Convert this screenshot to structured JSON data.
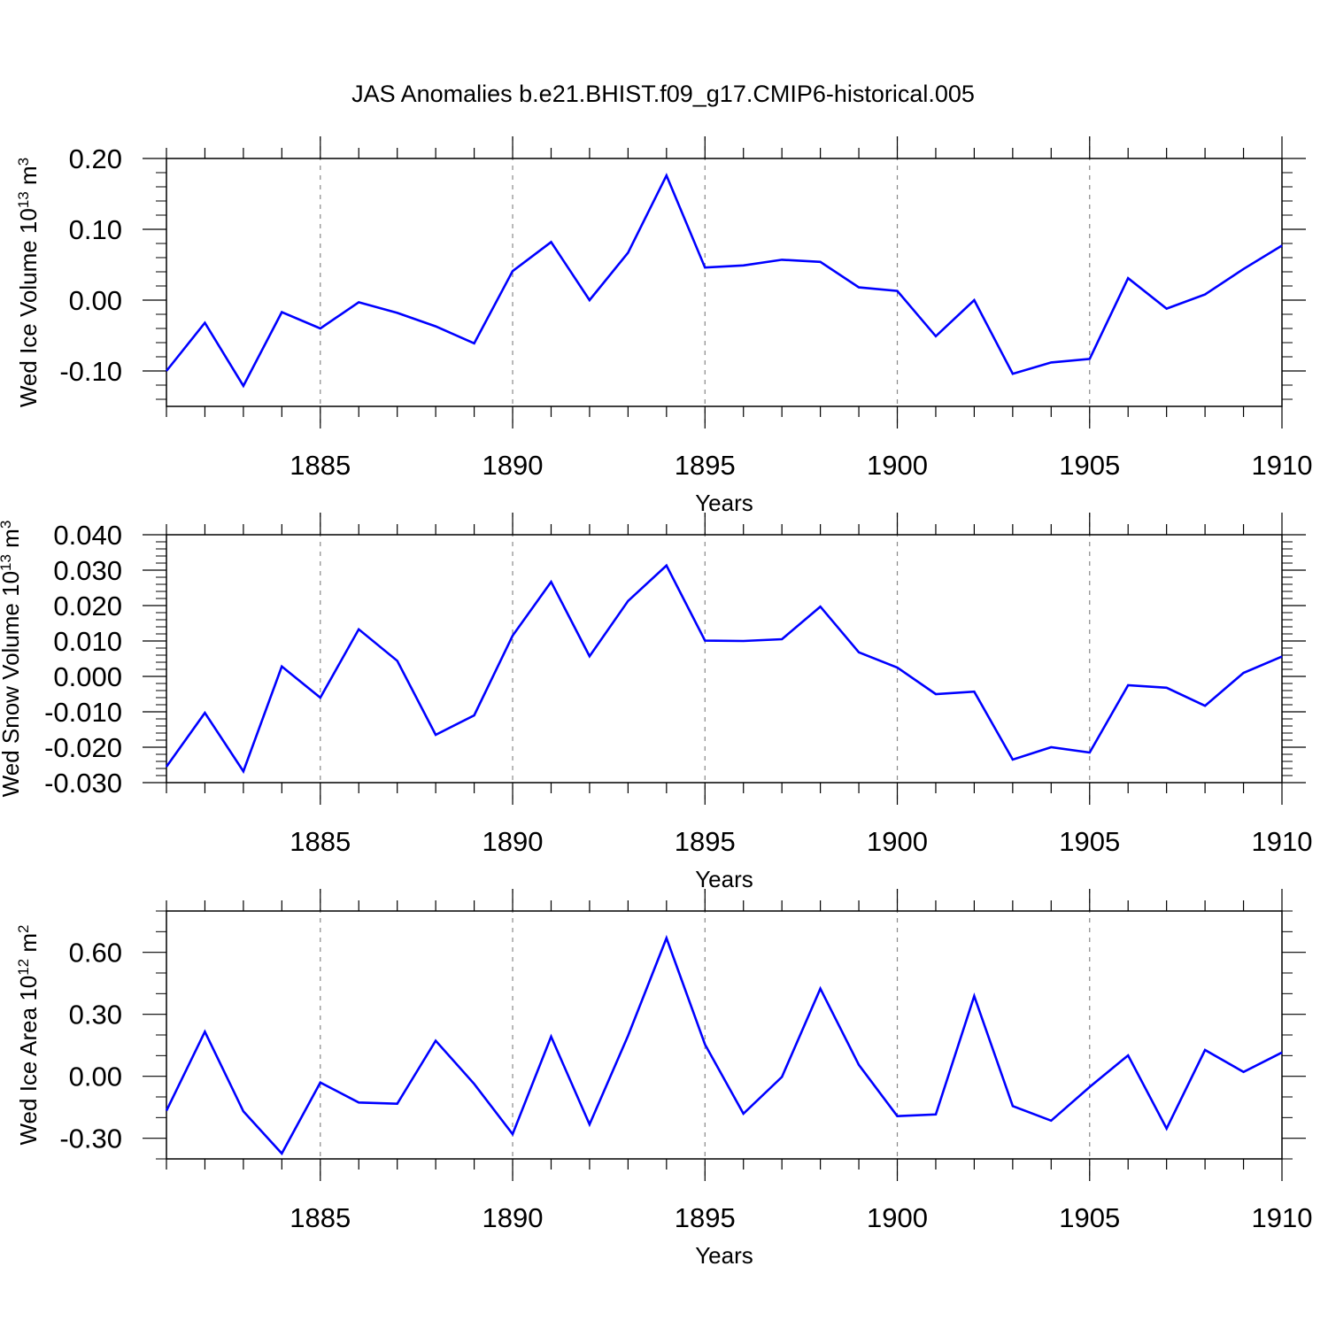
{
  "title": "JAS Anomalies b.e21.BHIST.f09_g17.CMIP6-historical.005",
  "colors": {
    "line": "#0000ff",
    "axis": "#000000",
    "grid": "#888888",
    "background": "#ffffff"
  },
  "chart_data": [
    {
      "type": "line",
      "name": "ice-volume",
      "ylabel_prefix": "Wed Ice Volume 10",
      "ylabel_exp": "13",
      "ylabel_unit": "m",
      "ylabel_unit_exp": "3",
      "xlabel": "Years",
      "xlim": [
        1881,
        1910
      ],
      "ylim": [
        -0.15,
        0.2
      ],
      "yticks": [
        -0.1,
        0.0,
        0.1,
        0.2
      ],
      "ytick_labels": [
        "-0.10",
        "0.00",
        "0.10",
        "0.20"
      ],
      "yminor_step": 0.02,
      "xticks": [
        1885,
        1890,
        1895,
        1900,
        1905,
        1910
      ],
      "xtick_labels": [
        "1885",
        "1890",
        "1895",
        "1900",
        "1905",
        "1910"
      ],
      "grid_x": [
        1885,
        1890,
        1895,
        1900,
        1905
      ],
      "series": [
        {
          "name": "Wed Ice Volume",
          "x": [
            1881,
            1882,
            1883,
            1884,
            1885,
            1886,
            1887,
            1888,
            1889,
            1890,
            1891,
            1892,
            1893,
            1894,
            1895,
            1896,
            1897,
            1898,
            1899,
            1900,
            1901,
            1902,
            1903,
            1904,
            1905,
            1906,
            1907,
            1908,
            1909,
            1910
          ],
          "values": [
            -0.1,
            -0.032,
            -0.121,
            -0.017,
            -0.04,
            -0.003,
            -0.018,
            -0.037,
            -0.061,
            0.041,
            0.082,
            0.0,
            0.067,
            0.176,
            0.046,
            0.049,
            0.057,
            0.054,
            0.018,
            0.013,
            -0.051,
            0.0,
            -0.104,
            -0.088,
            -0.083,
            0.031,
            -0.012,
            0.008,
            0.044,
            0.077
          ]
        }
      ]
    },
    {
      "type": "line",
      "name": "snow-volume",
      "ylabel_prefix": "Wed Snow Volume 10",
      "ylabel_exp": "13",
      "ylabel_unit": "m",
      "ylabel_unit_exp": "3",
      "xlabel": "Years",
      "xlim": [
        1881,
        1910
      ],
      "ylim": [
        -0.03,
        0.04
      ],
      "yticks": [
        -0.03,
        -0.02,
        -0.01,
        0.0,
        0.01,
        0.02,
        0.03,
        0.04
      ],
      "ytick_labels": [
        "-0.030",
        "-0.020",
        "-0.010",
        "0.000",
        "0.010",
        "0.020",
        "0.030",
        "0.040"
      ],
      "yminor_step": 0.002,
      "xticks": [
        1885,
        1890,
        1895,
        1900,
        1905,
        1910
      ],
      "xtick_labels": [
        "1885",
        "1890",
        "1895",
        "1900",
        "1905",
        "1910"
      ],
      "grid_x": [
        1885,
        1890,
        1895,
        1900,
        1905
      ],
      "series": [
        {
          "name": "Wed Snow Volume",
          "x": [
            1881,
            1882,
            1883,
            1884,
            1885,
            1886,
            1887,
            1888,
            1889,
            1890,
            1891,
            1892,
            1893,
            1894,
            1895,
            1896,
            1897,
            1898,
            1899,
            1900,
            1901,
            1902,
            1903,
            1904,
            1905,
            1906,
            1907,
            1908,
            1909,
            1910
          ],
          "values": [
            -0.0255,
            -0.0103,
            -0.0268,
            0.0028,
            -0.006,
            0.0133,
            0.0044,
            -0.0165,
            -0.011,
            0.0115,
            0.0267,
            0.0057,
            0.0213,
            0.0313,
            0.0101,
            0.01,
            0.0105,
            0.0197,
            0.0068,
            0.0025,
            -0.005,
            -0.0043,
            -0.0235,
            -0.02,
            -0.0215,
            -0.0025,
            -0.0032,
            -0.0083,
            0.001,
            0.0056
          ]
        }
      ]
    },
    {
      "type": "line",
      "name": "ice-area",
      "ylabel_prefix": "Wed Ice Area 10",
      "ylabel_exp": "12",
      "ylabel_unit": "m",
      "ylabel_unit_exp": "2",
      "xlabel": "Years",
      "xlim": [
        1881,
        1910
      ],
      "ylim": [
        -0.4,
        0.8
      ],
      "yticks": [
        -0.3,
        0.0,
        0.3,
        0.6
      ],
      "ytick_labels": [
        "-0.30",
        "0.00",
        "0.30",
        "0.60"
      ],
      "yminor_step": 0.1,
      "xticks": [
        1885,
        1890,
        1895,
        1900,
        1905,
        1910
      ],
      "xtick_labels": [
        "1885",
        "1890",
        "1895",
        "1900",
        "1905",
        "1910"
      ],
      "grid_x": [
        1885,
        1890,
        1895,
        1900,
        1905
      ],
      "series": [
        {
          "name": "Wed Ice Area",
          "x": [
            1881,
            1882,
            1883,
            1884,
            1885,
            1886,
            1887,
            1888,
            1889,
            1890,
            1891,
            1892,
            1893,
            1894,
            1895,
            1896,
            1897,
            1898,
            1899,
            1900,
            1901,
            1902,
            1903,
            1904,
            1905,
            1906,
            1907,
            1908,
            1909,
            1910
          ],
          "values": [
            -0.167,
            0.216,
            -0.17,
            -0.374,
            -0.03,
            -0.127,
            -0.133,
            0.172,
            -0.037,
            -0.28,
            0.192,
            -0.233,
            0.196,
            0.669,
            0.154,
            -0.181,
            -0.003,
            0.424,
            0.055,
            -0.193,
            -0.185,
            0.388,
            -0.144,
            -0.215,
            -0.052,
            0.101,
            -0.253,
            0.127,
            0.021,
            0.115
          ]
        }
      ]
    }
  ]
}
